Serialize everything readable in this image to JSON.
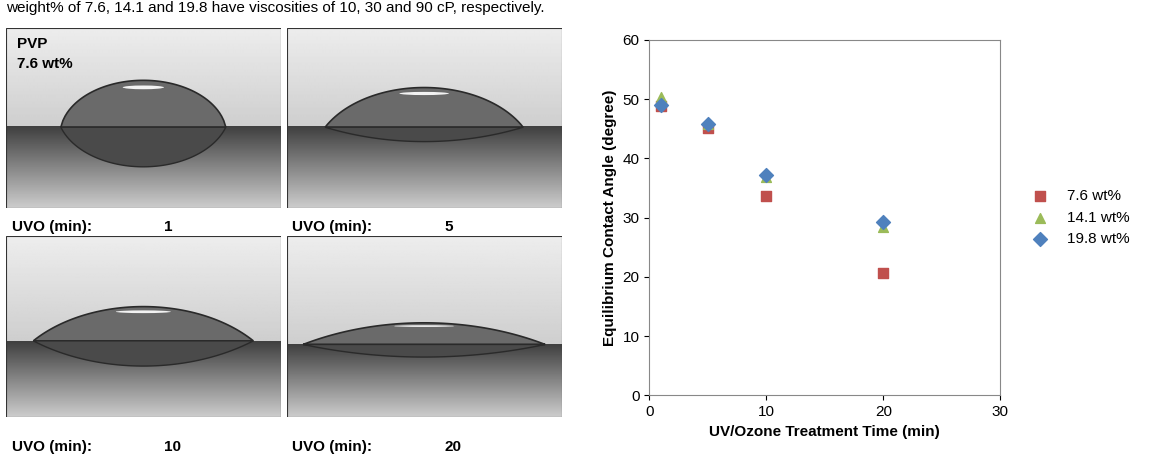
{
  "caption": "weight% of 7.6, 14.1 and 19.8 have viscosities of 10, 30 and 90 cP, respectively.",
  "panels": {
    "sample": "PVP",
    "concentration": "7.6 wt%",
    "time_label": "UVO (min):",
    "times": [
      1,
      5,
      10,
      20
    ]
  },
  "chart_data": {
    "type": "scatter",
    "x_label": "UV/Ozone Treatment Time (min)",
    "y_label": "Equilibrium Contact Angle (degree)",
    "x": [
      1,
      5,
      10,
      20
    ],
    "series": [
      {
        "name": "7.6 wt%",
        "color": "#c0504d",
        "marker": "square",
        "values": [
          48.8,
          45.2,
          33.6,
          20.7
        ]
      },
      {
        "name": "14.1 wt%",
        "color": "#9bbb59",
        "marker": "triangle",
        "values": [
          50.4,
          45.8,
          36.8,
          28.5
        ]
      },
      {
        "name": "19.8 wt%",
        "color": "#4f81bd",
        "marker": "diamond",
        "values": [
          49.0,
          45.8,
          37.2,
          29.2
        ]
      }
    ],
    "xlim": [
      0,
      30
    ],
    "xticks": [
      0,
      10,
      20,
      30
    ],
    "ylim": [
      0,
      60
    ],
    "yticks": [
      0,
      10,
      20,
      30,
      40,
      50,
      60
    ],
    "grid": false,
    "legend": "center left"
  }
}
